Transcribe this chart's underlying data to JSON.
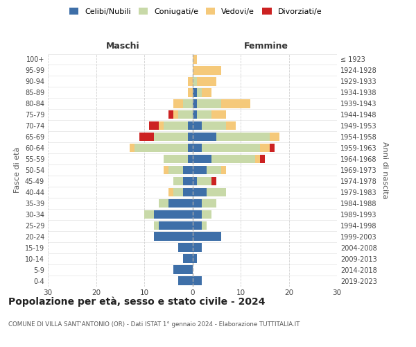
{
  "age_groups": [
    "0-4",
    "5-9",
    "10-14",
    "15-19",
    "20-24",
    "25-29",
    "30-34",
    "35-39",
    "40-44",
    "45-49",
    "50-54",
    "55-59",
    "60-64",
    "65-69",
    "70-74",
    "75-79",
    "80-84",
    "85-89",
    "90-94",
    "95-99",
    "100+"
  ],
  "birth_years": [
    "2019-2023",
    "2014-2018",
    "2009-2013",
    "2004-2008",
    "1999-2003",
    "1994-1998",
    "1989-1993",
    "1984-1988",
    "1979-1983",
    "1974-1978",
    "1969-1973",
    "1964-1968",
    "1959-1963",
    "1954-1958",
    "1949-1953",
    "1944-1948",
    "1939-1943",
    "1934-1938",
    "1929-1933",
    "1924-1928",
    "≤ 1923"
  ],
  "maschi": {
    "celibi": [
      3,
      4,
      2,
      3,
      8,
      7,
      8,
      5,
      2,
      2,
      2,
      1,
      1,
      1,
      1,
      0,
      0,
      0,
      0,
      0,
      0
    ],
    "coniugati": [
      0,
      0,
      0,
      0,
      0,
      1,
      2,
      2,
      2,
      2,
      3,
      5,
      11,
      7,
      5,
      3,
      2,
      0,
      0,
      0,
      0
    ],
    "vedovi": [
      0,
      0,
      0,
      0,
      0,
      0,
      0,
      0,
      1,
      0,
      1,
      0,
      1,
      0,
      1,
      1,
      2,
      1,
      1,
      0,
      0
    ],
    "divorziati": [
      0,
      0,
      0,
      0,
      0,
      0,
      0,
      0,
      0,
      0,
      0,
      0,
      0,
      3,
      2,
      1,
      0,
      0,
      0,
      0,
      0
    ]
  },
  "femmine": {
    "nubili": [
      2,
      0,
      1,
      2,
      6,
      2,
      2,
      2,
      3,
      1,
      3,
      4,
      2,
      5,
      2,
      1,
      1,
      1,
      0,
      0,
      0
    ],
    "coniugate": [
      0,
      0,
      0,
      0,
      0,
      1,
      2,
      3,
      4,
      3,
      3,
      9,
      12,
      11,
      5,
      3,
      5,
      1,
      1,
      0,
      0
    ],
    "vedove": [
      0,
      0,
      0,
      0,
      0,
      0,
      0,
      0,
      0,
      0,
      1,
      1,
      2,
      2,
      2,
      3,
      6,
      2,
      4,
      6,
      1
    ],
    "divorziate": [
      0,
      0,
      0,
      0,
      0,
      0,
      0,
      0,
      0,
      1,
      0,
      1,
      1,
      0,
      0,
      0,
      0,
      0,
      0,
      0,
      0
    ]
  },
  "colors": {
    "celibi_nubili": "#3e6fa8",
    "coniugati": "#c8d9a8",
    "vedovi": "#f5c97a",
    "divorziati": "#cc2222"
  },
  "xlim": 30,
  "title": "Popolazione per età, sesso e stato civile - 2024",
  "subtitle": "COMUNE DI VILLA SANT'ANTONIO (OR) - Dati ISTAT 1° gennaio 2024 - Elaborazione TUTTITALIA.IT",
  "xlabel_left": "Maschi",
  "xlabel_right": "Femmine",
  "ylabel_left": "Fasce di età",
  "ylabel_right": "Anni di nascita",
  "bg_color": "#ffffff",
  "grid_color": "#cccccc"
}
